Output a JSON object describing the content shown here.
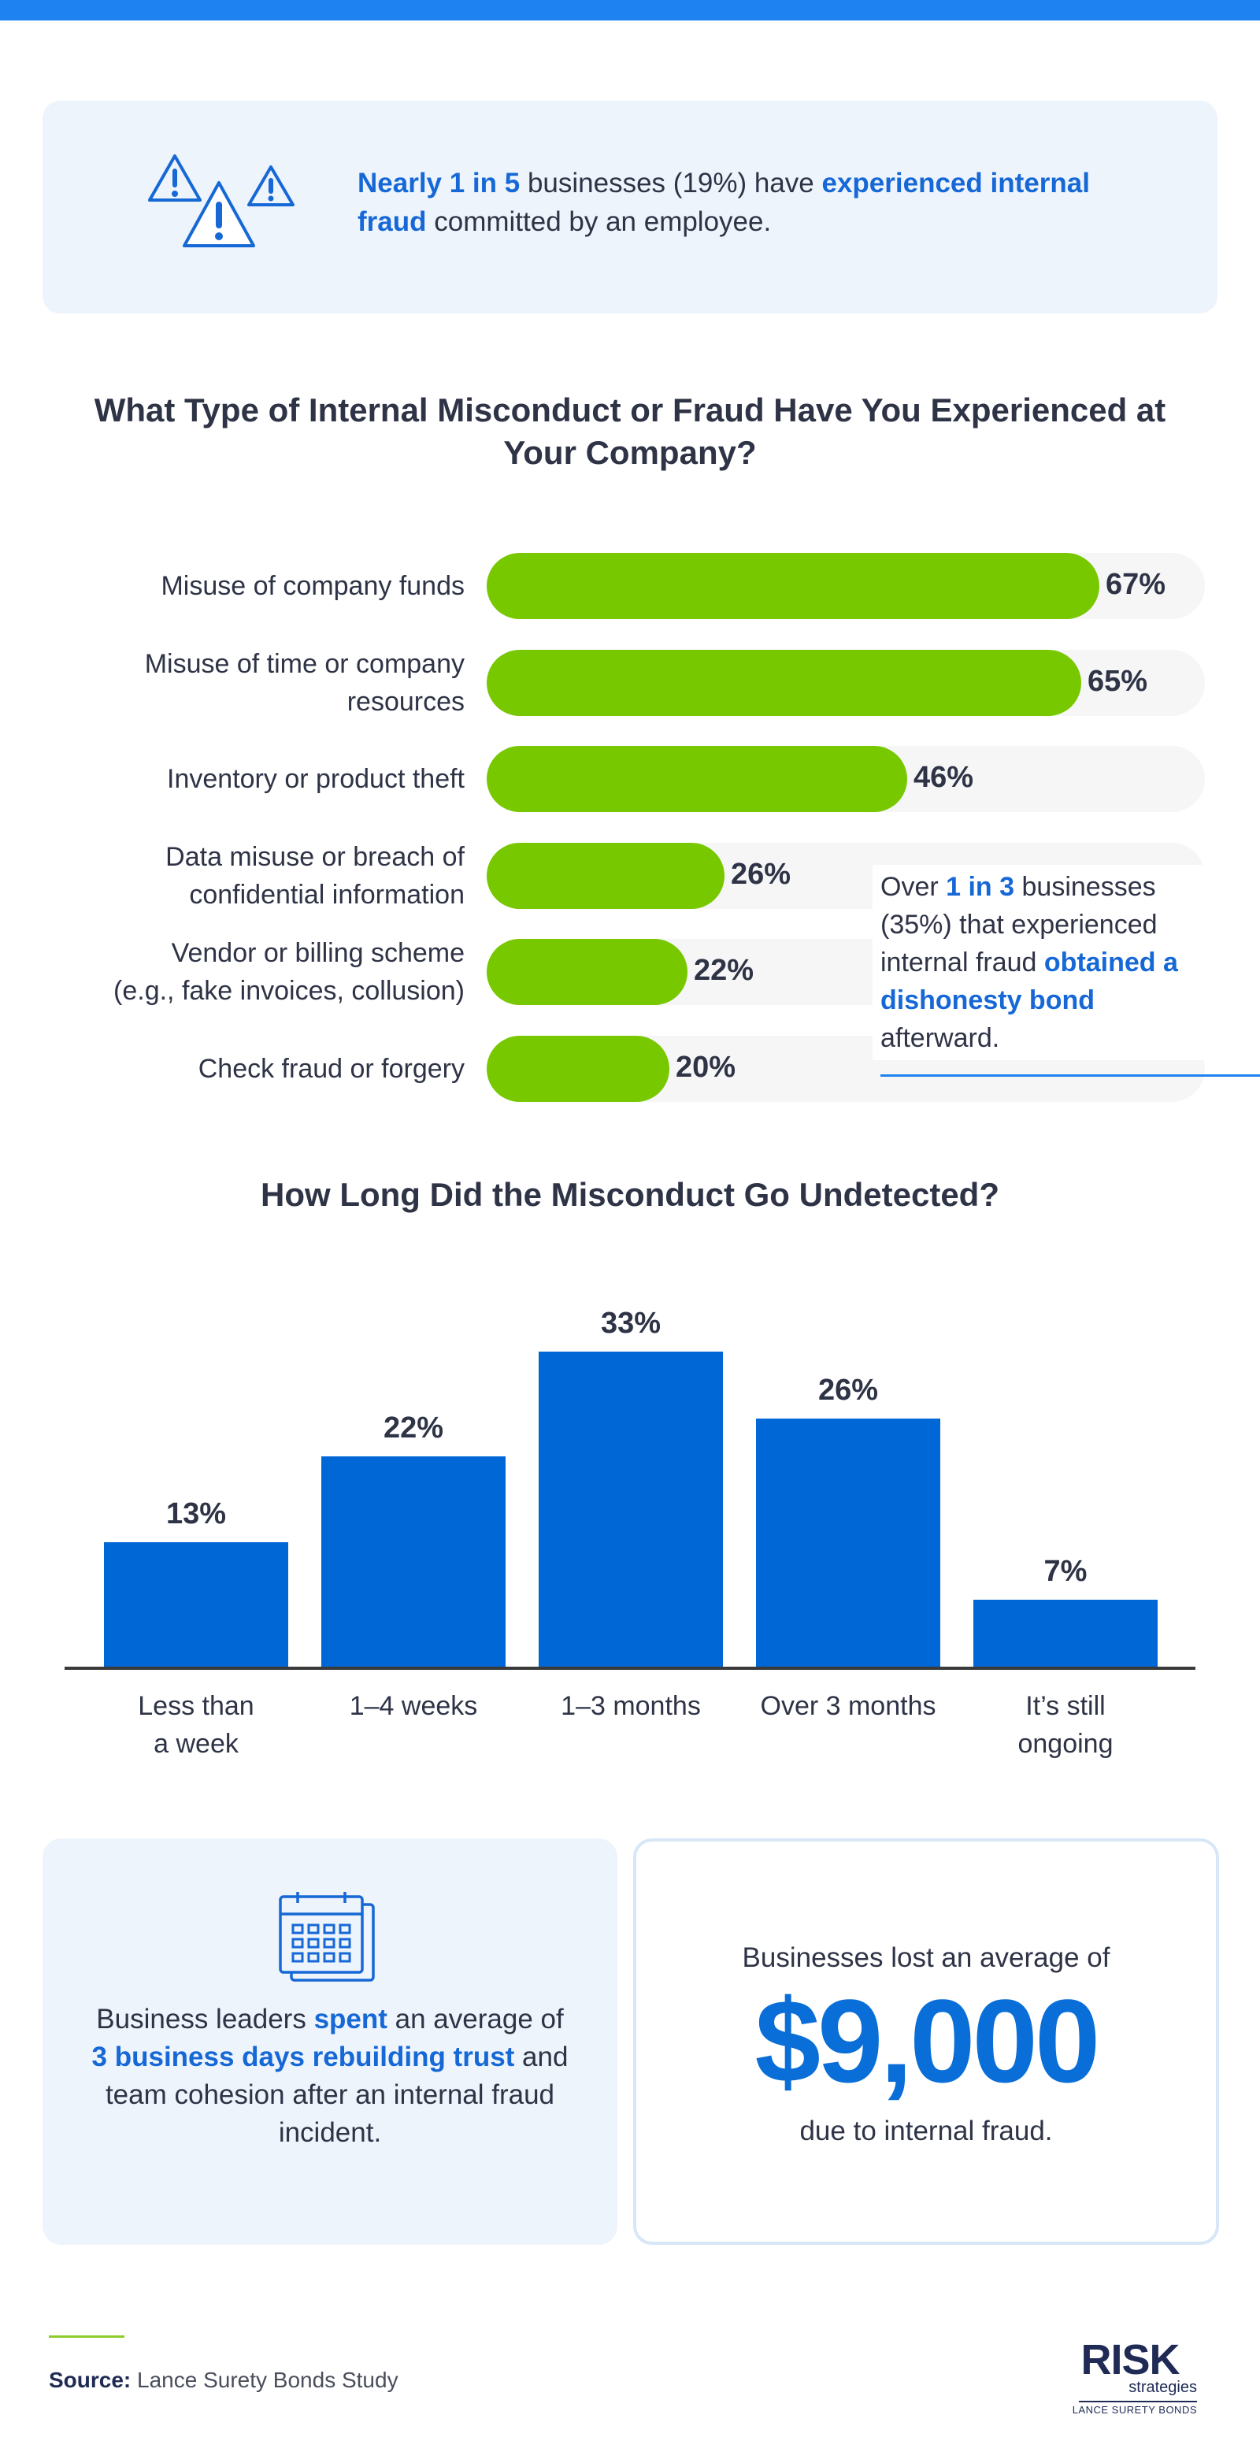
{
  "stat1": {
    "parts": [
      {
        "text": "Nearly 1 in 5",
        "highlight": true
      },
      {
        "text": " businesses (19%) have ",
        "highlight": false
      },
      {
        "text": "experienced internal fraud",
        "highlight": true
      },
      {
        "text": " committed by an employee.",
        "highlight": false
      }
    ]
  },
  "misconduct_title": "What Type of Internal Misconduct or Fraud Have You Experienced at Your Company?",
  "bond_note": {
    "parts": [
      {
        "text": "Over ",
        "highlight": false
      },
      {
        "text": "1 in 3",
        "highlight": true
      },
      {
        "text": " businesses (35%) that experienced internal fraud ",
        "highlight": false
      },
      {
        "text": "obtained a dishonesty bond",
        "highlight": true
      },
      {
        "text": " afterward.",
        "highlight": false
      }
    ]
  },
  "undetected_title": "How Long Did the Misconduct Go Undetected?",
  "chart_data": [
    {
      "type": "bar",
      "orientation": "horizontal",
      "title": "What Type of Internal Misconduct or Fraud Have You Experienced at Your Company?",
      "categories": [
        "Misuse of company funds",
        "Misuse of time or company resources",
        "Inventory or product theft",
        "Data misuse or breach of confidential information",
        "Vendor or billing scheme (e.g., fake invoices, collusion)",
        "Check fraud or forgery"
      ],
      "category_lines": [
        [
          "Misuse of company funds"
        ],
        [
          "Misuse of time or company",
          "resources"
        ],
        [
          "Inventory or product theft"
        ],
        [
          "Data misuse or breach of",
          "confidential information"
        ],
        [
          "Vendor or billing scheme",
          "(e.g., fake invoices, collusion)"
        ],
        [
          "Check fraud or forgery"
        ]
      ],
      "values": [
        67,
        65,
        46,
        26,
        22,
        20
      ],
      "value_labels": [
        "67%",
        "65%",
        "46%",
        "26%",
        "22%",
        "20%"
      ],
      "xlim": [
        0,
        100
      ],
      "color": "#78c800"
    },
    {
      "type": "bar",
      "orientation": "vertical",
      "title": "How Long Did the Misconduct Go Undetected?",
      "categories": [
        "Less than a week",
        "1–4 weeks",
        "1–3 months",
        "Over 3 months",
        "It’s still ongoing"
      ],
      "category_lines": [
        [
          "Less than",
          "a week"
        ],
        [
          "1–4 weeks"
        ],
        [
          "1–3 months"
        ],
        [
          "Over 3 months"
        ],
        [
          "It’s still",
          "ongoing"
        ]
      ],
      "values": [
        13,
        22,
        33,
        26,
        7
      ],
      "value_labels": [
        "13%",
        "22%",
        "33%",
        "26%",
        "7%"
      ],
      "ylim": [
        0,
        33
      ],
      "color": "#0067d6"
    }
  ],
  "stat2": {
    "parts": [
      {
        "text": "Business leaders ",
        "highlight": false
      },
      {
        "text": "spent",
        "highlight": true
      },
      {
        "text": " an average of ",
        "highlight": false
      },
      {
        "text": "3 business days rebuilding trust",
        "highlight": true
      },
      {
        "text": " and team cohesion after an internal fraud incident.",
        "highlight": false
      }
    ]
  },
  "stat3": {
    "pre": "Businesses lost an average of",
    "amount": "$9,000",
    "post": "due to internal fraud."
  },
  "footer": {
    "source_label": "Source:",
    "source_text": "Lance Surety Bonds Study",
    "logo_main": "RISK",
    "logo_sub": "strategies",
    "logo_tag": "LANCE SURETY BONDS"
  },
  "icons": {
    "warning": "warning-triangles-icon",
    "calendar": "calendar-icon"
  },
  "colors": {
    "accent_blue": "#1668d6",
    "bar_green": "#78c800",
    "bar_blue": "#0067d6",
    "card_bg": "#eef4fb"
  }
}
